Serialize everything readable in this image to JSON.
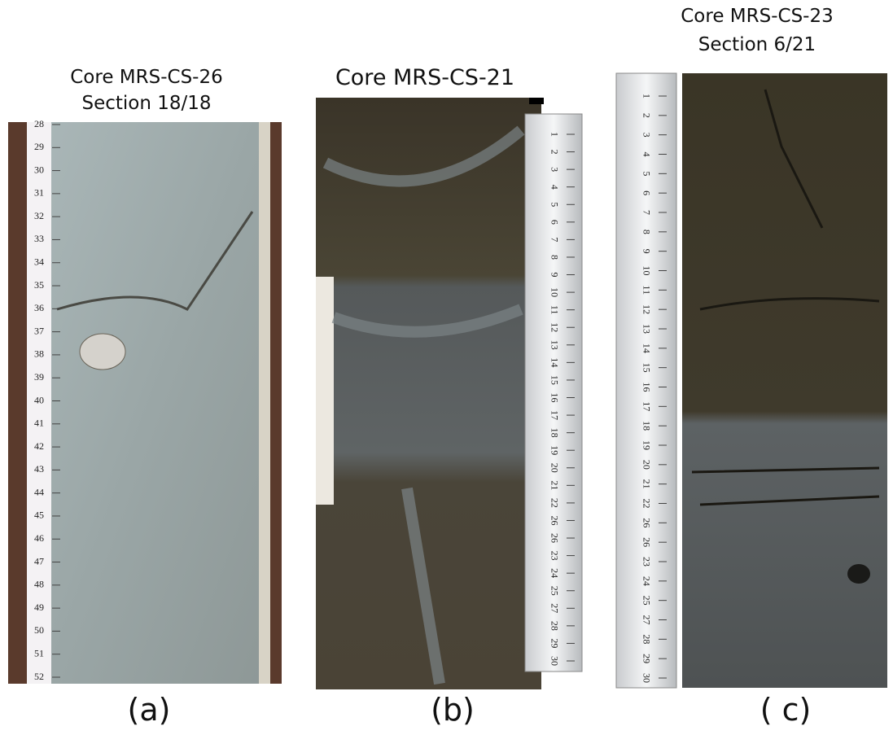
{
  "panels": [
    {
      "title": "Core MRS-CS-26",
      "subtitle": "Section 18/18",
      "label": "(a)",
      "ruler": [
        28,
        29,
        30,
        31,
        32,
        33,
        34,
        35,
        36,
        37,
        38,
        39,
        40,
        41,
        42,
        43,
        44,
        45,
        46,
        47,
        48,
        49,
        50,
        51,
        52
      ]
    },
    {
      "title": "Core MRS-CS-21",
      "label": "(b)",
      "ruler": [
        1,
        2,
        3,
        4,
        5,
        6,
        7,
        8,
        9,
        10,
        11,
        12,
        13,
        14,
        15,
        16,
        17,
        18,
        19,
        20,
        21,
        22,
        26,
        26,
        23,
        24,
        25,
        27,
        28,
        29,
        30
      ]
    },
    {
      "title": "Core MRS-CS-23",
      "subtitle": "Section 6/21",
      "label": "( c)",
      "ruler": [
        1,
        2,
        3,
        4,
        5,
        6,
        7,
        8,
        9,
        10,
        11,
        12,
        13,
        14,
        15,
        16,
        17,
        18,
        19,
        20,
        21,
        22,
        26,
        26,
        23,
        24,
        25,
        27,
        28,
        29,
        30
      ]
    }
  ]
}
